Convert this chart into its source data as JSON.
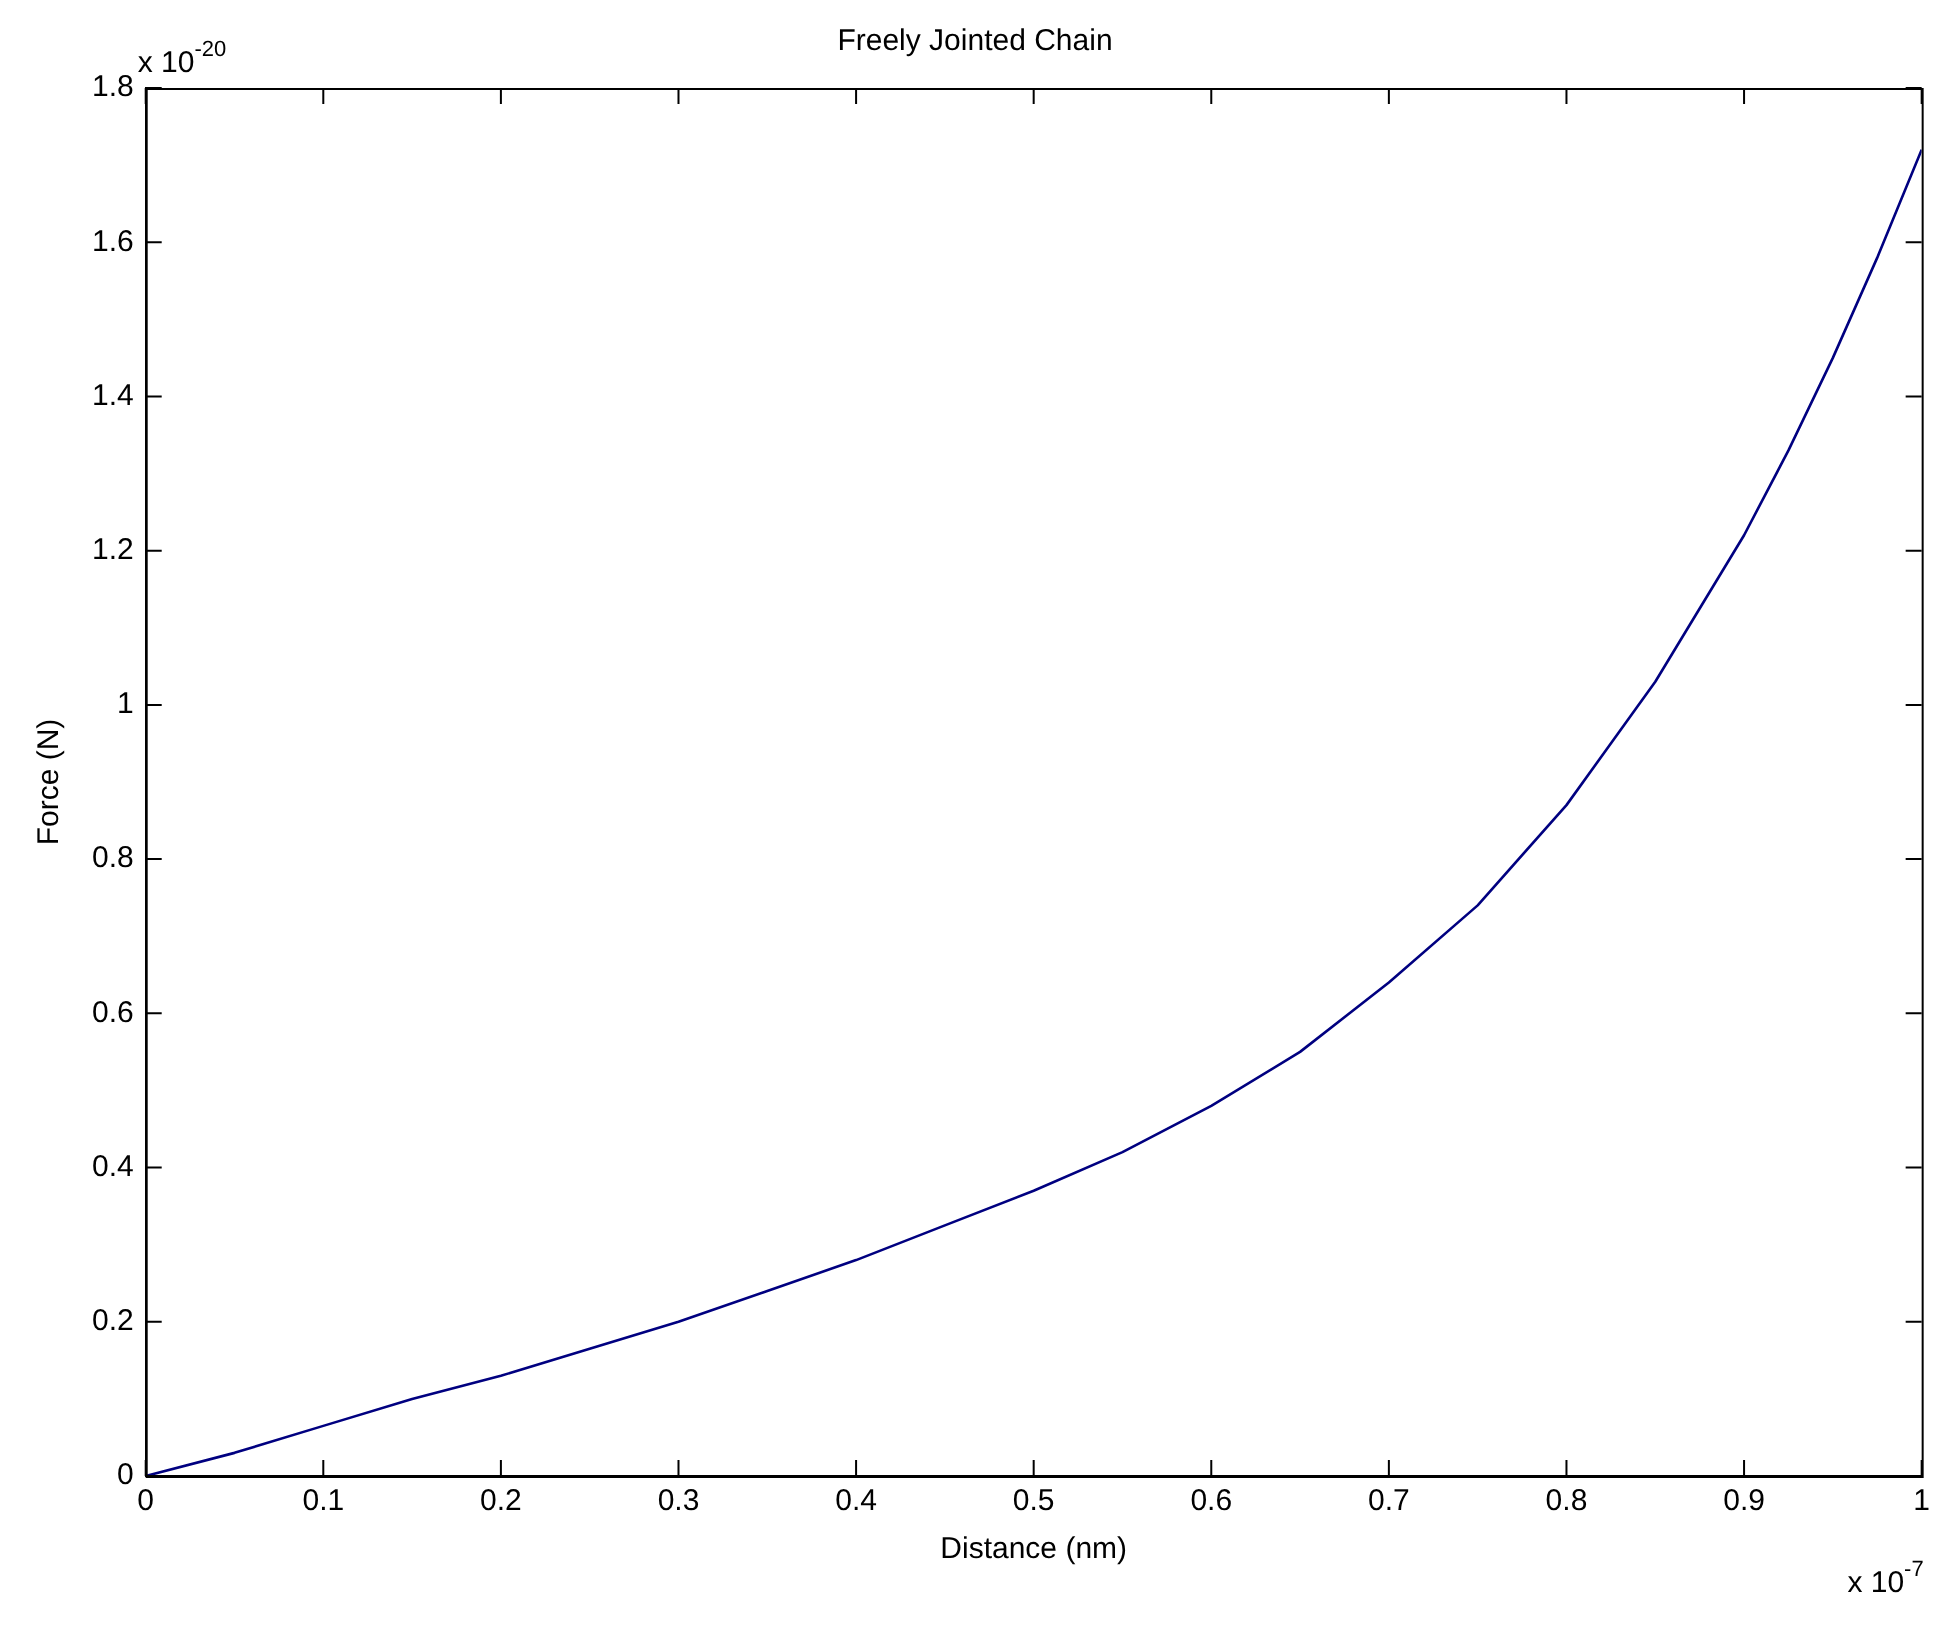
{
  "chart_data": {
    "type": "line",
    "title": "Freely Jointed Chain",
    "xlabel": "Distance (nm)",
    "ylabel": "Force (N)",
    "x": [
      0,
      0.05,
      0.1,
      0.15,
      0.2,
      0.25,
      0.3,
      0.35,
      0.4,
      0.45,
      0.5,
      0.55,
      0.6,
      0.65,
      0.7,
      0.75,
      0.8,
      0.85,
      0.9,
      0.925,
      0.95,
      0.975,
      1
    ],
    "series": [
      {
        "color": "#000080",
        "values": [
          0,
          0.03,
          0.065,
          0.1,
          0.13,
          0.165,
          0.2,
          0.24,
          0.28,
          0.325,
          0.37,
          0.42,
          0.48,
          0.55,
          0.64,
          0.74,
          0.87,
          1.03,
          1.22,
          1.33,
          1.45,
          1.58,
          1.72
        ]
      }
    ],
    "xlim": [
      0,
      1
    ],
    "xticks": [
      0,
      0.1,
      0.2,
      0.3,
      0.4,
      0.5,
      0.6,
      0.7,
      0.8,
      0.9,
      1
    ],
    "ylim": [
      0,
      1.8
    ],
    "yticks": [
      0,
      0.2,
      0.4,
      0.6,
      0.8,
      1,
      1.2,
      1.4,
      1.6,
      1.8
    ],
    "annotations": [
      "x 10$^{-20}$",
      "x 10$^{-7}$"
    ],
    "grid": false,
    "legend": false,
    "marker": "none",
    "line_style": "solid"
  }
}
